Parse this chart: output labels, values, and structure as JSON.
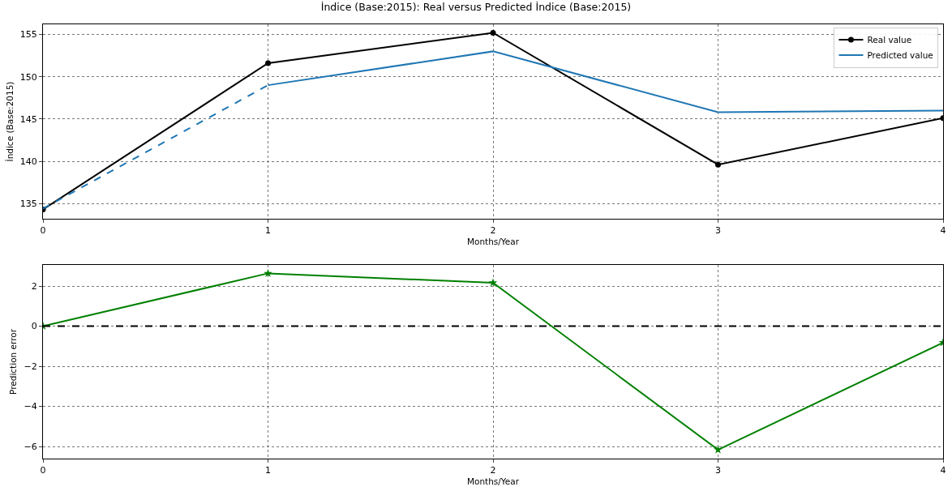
{
  "chart_data": [
    {
      "type": "line",
      "title": "İndice (Base:2015): Real versus Predicted İndice (Base:2015)",
      "xlabel": "Months/Year",
      "ylabel": "İndice (Base:2015)",
      "xlim": [
        0,
        4
      ],
      "xticks": [
        0,
        1,
        2,
        3,
        4
      ],
      "ylim": [
        133.2,
        156.2
      ],
      "yticks": [
        135,
        140,
        145,
        150,
        155
      ],
      "grid": true,
      "legend": "top right",
      "series": [
        {
          "name": "Real value",
          "color": "#000000",
          "x": [
            0,
            1,
            2,
            3,
            4
          ],
          "values": [
            134.3,
            151.6,
            155.2,
            139.6,
            145.1
          ],
          "marker": "circle",
          "line_style": "solid"
        },
        {
          "name": "Predicted value",
          "color": "#1f77b4",
          "x": [
            1,
            2,
            3,
            4
          ],
          "values": [
            149.0,
            153.0,
            145.8,
            146.0
          ],
          "marker": "none",
          "line_style": "solid"
        },
        {
          "color": "#1f77b4",
          "x": [
            0,
            1
          ],
          "values": [
            134.4,
            149.0
          ],
          "marker": "none",
          "line_style": "dashed"
        }
      ]
    },
    {
      "type": "line",
      "xlabel": "Months/Year",
      "ylabel": "Prediction error",
      "xlim": [
        0,
        4
      ],
      "xticks": [
        0,
        1,
        2,
        3,
        4
      ],
      "ylim": [
        -6.6,
        3.05
      ],
      "yticks": [
        {
          "value": -6,
          "label": "−6"
        },
        {
          "value": -4,
          "label": "−4"
        },
        {
          "value": -2,
          "label": "−2"
        },
        0,
        2
      ],
      "grid": true,
      "legend": false,
      "ref_lines": [
        {
          "axis": "y",
          "value": 0,
          "color": "#000000",
          "line_style": "dashed"
        }
      ],
      "series": [
        {
          "color": "#008000",
          "x": [
            0,
            1,
            2,
            3,
            4
          ],
          "values": [
            0,
            2.63,
            2.16,
            -6.16,
            -0.82
          ],
          "marker": "star",
          "line_style": "solid"
        }
      ]
    }
  ]
}
